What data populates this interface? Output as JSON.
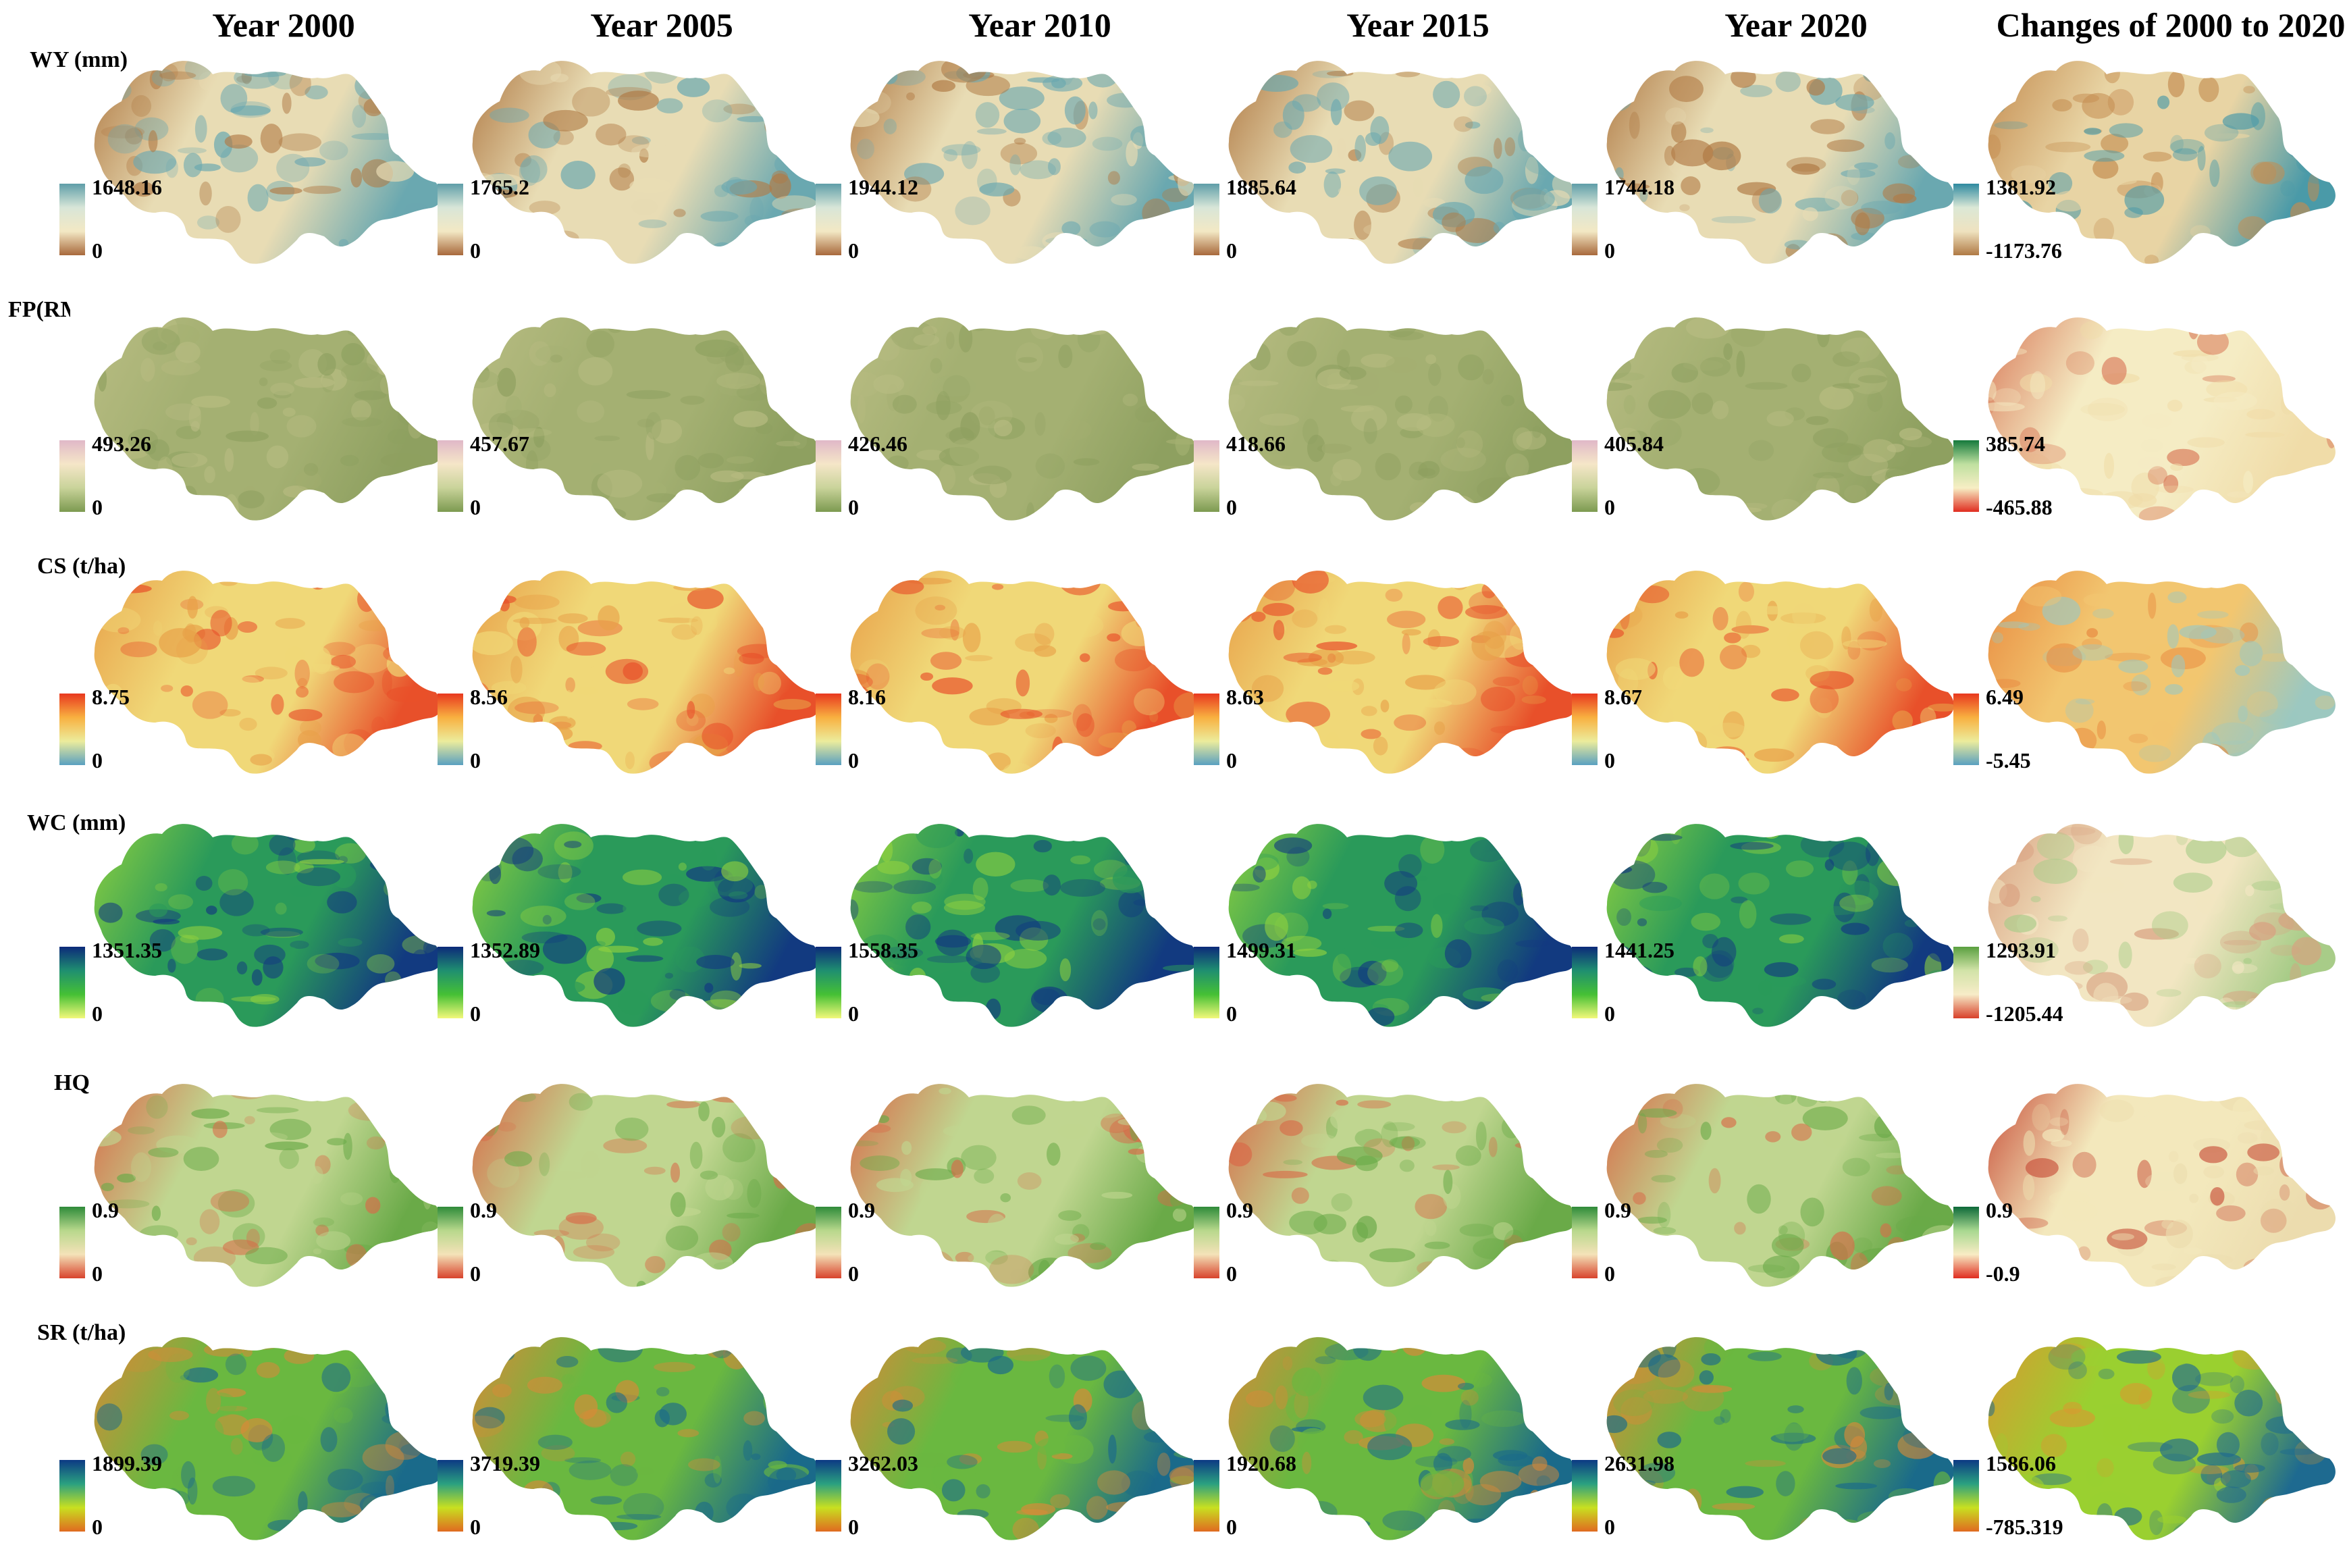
{
  "columns": [
    "Year 2000",
    "Year 2005",
    "Year 2010",
    "Year 2015",
    "Year 2020",
    "Changes of 2000 to 2020"
  ],
  "rows": [
    {
      "label": "WY (mm)",
      "ramp": [
        "#5f9ea8",
        "#d8e6d8",
        "#f3e8c4",
        "#a8693c"
      ],
      "change_ramp": [
        "#2f8aa0",
        "#dbe8d6",
        "#efe2bf",
        "#b07a45"
      ],
      "max": [
        "1648.16",
        "1765.2",
        "1944.12",
        "1885.64",
        "1744.18",
        "1381.92"
      ],
      "min": [
        "0",
        "0",
        "0",
        "0",
        "0",
        "-1173.76"
      ]
    },
    {
      "label": "FP(RMB)",
      "ramp": [
        "#e0b8c8",
        "#f5e6c8",
        "#c9d39a",
        "#7c9a50"
      ],
      "change_ramp": [
        "#157a3c",
        "#bfe0a0",
        "#f7eec4",
        "#e02d20"
      ],
      "max": [
        "493.26",
        "457.67",
        "426.46",
        "418.66",
        "405.84",
        "385.74"
      ],
      "min": [
        "0",
        "0",
        "0",
        "0",
        "0",
        "-465.88"
      ]
    },
    {
      "label": "CS (t/ha)",
      "ramp": [
        "#e8381f",
        "#f8b040",
        "#ecec9c",
        "#5aa0c0"
      ],
      "change_ramp": [
        "#e8381f",
        "#f8b040",
        "#ecec9c",
        "#5aa0c0"
      ],
      "max": [
        "8.75",
        "8.56",
        "8.16",
        "8.63",
        "8.67",
        "6.49"
      ],
      "min": [
        "0",
        "0",
        "0",
        "0",
        "0",
        "-5.45"
      ]
    },
    {
      "label": "WC (mm)",
      "ramp": [
        "#0c2a7a",
        "#1f8f70",
        "#45c035",
        "#f2f87a"
      ],
      "change_ramp": [
        "#5aa040",
        "#d2e3a8",
        "#f7ecc8",
        "#d8402a"
      ],
      "max": [
        "1351.35",
        "1352.89",
        "1558.35",
        "1499.31",
        "1441.25",
        "1293.91"
      ],
      "min": [
        "0",
        "0",
        "0",
        "0",
        "0",
        "-1205.44"
      ]
    },
    {
      "label": "HQ",
      "ramp": [
        "#2e8b3a",
        "#b8d88c",
        "#f4e2b8",
        "#d8432c"
      ],
      "change_ramp": [
        "#0e6a3a",
        "#a8d890",
        "#f8ecc4",
        "#e02d20"
      ],
      "max": [
        "0.9",
        "0.9",
        "0.9",
        "0.9",
        "0.9",
        "0.9"
      ],
      "min": [
        "0",
        "0",
        "0",
        "0",
        "0",
        "-0.9"
      ]
    },
    {
      "label": "SR (t/ha)",
      "ramp": [
        "#0c3a84",
        "#2aa080",
        "#c8e020",
        "#e06a20"
      ],
      "change_ramp": [
        "#0c3a84",
        "#2aa080",
        "#c8e020",
        "#e06a20"
      ],
      "max": [
        "1899.39",
        "3719.39",
        "3262.03",
        "1920.68",
        "2631.98",
        "1586.06"
      ],
      "min": [
        "0",
        "0",
        "0",
        "0",
        "0",
        "-785.319"
      ]
    }
  ],
  "map_fill": {
    "WY (mm)": {
      "base": "#e8dcb4",
      "edge": "#b07a45",
      "patch": "#6aa8b0"
    },
    "FP(RMB)": {
      "base": "#a4b072",
      "edge": "#b8bc82",
      "patch": "#8ea060"
    },
    "CS (t/ha)": {
      "base": "#f0d878",
      "edge": "#e8a048",
      "patch": "#e8502a"
    },
    "WC (mm)": {
      "base": "#2a9a5a",
      "edge": "#8ed040",
      "patch": "#123a80"
    },
    "HQ": {
      "base": "#c0d690",
      "edge": "#d86a48",
      "patch": "#6aaa48"
    },
    "SR (t/ha)": {
      "base": "#6ab840",
      "edge": "#d88a38",
      "patch": "#1a6a8a"
    }
  },
  "change_fill": {
    "WY (mm)": {
      "base": "#e8d4a4",
      "edge": "#c48c50",
      "patch": "#4a9aa8"
    },
    "FP(RMB)": {
      "base": "#f5ecc4",
      "edge": "#d87a5a",
      "patch": "#f0dca8"
    },
    "CS (t/ha)": {
      "base": "#f2c670",
      "edge": "#e88a40",
      "patch": "#9cc8c0"
    },
    "WC (mm)": {
      "base": "#f2e6c2",
      "edge": "#d8a080",
      "patch": "#a8cc88"
    },
    "HQ": {
      "base": "#f3e8bc",
      "edge": "#c8503a",
      "patch": "#ecdcae"
    },
    "SR (t/ha)": {
      "base": "#9ad030",
      "edge": "#d89a30",
      "patch": "#1e6a90"
    }
  }
}
